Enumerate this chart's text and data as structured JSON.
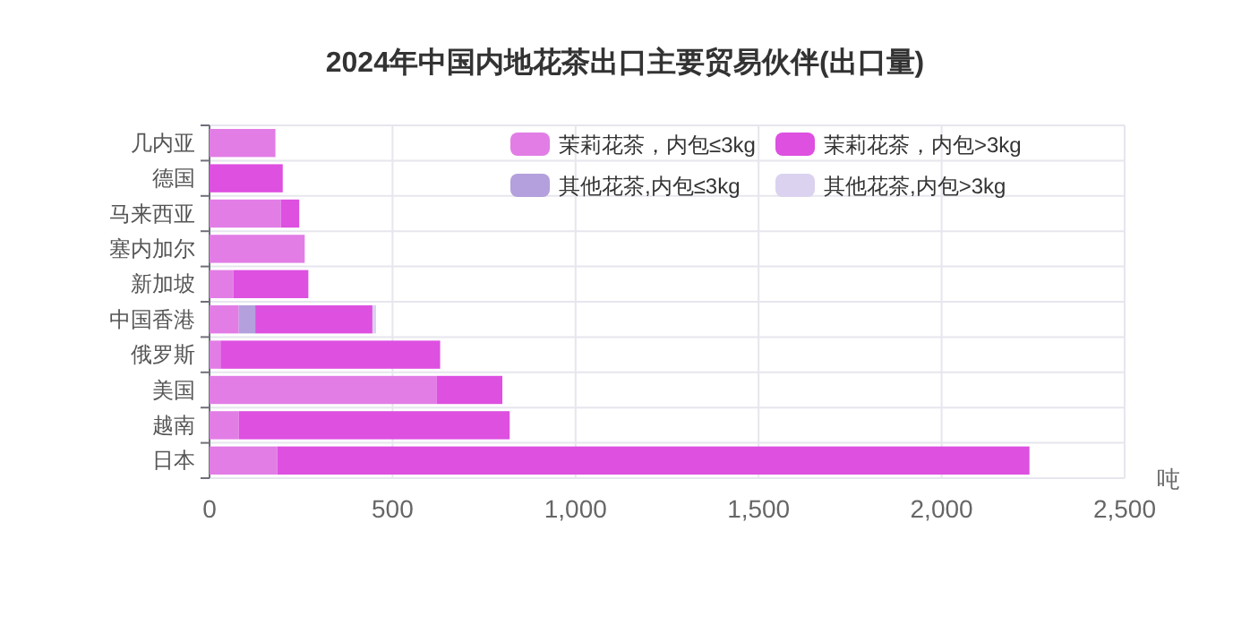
{
  "chart_data": {
    "type": "bar",
    "orientation": "horizontal",
    "stacked": true,
    "title": "2024年中国内地花茶出口主要贸易伙伴(出口量)",
    "xlabel": "吨",
    "categories": [
      "几内亚",
      "德国",
      "马来西亚",
      "塞内加尔",
      "新加坡",
      "中国香港",
      "俄罗斯",
      "美国",
      "越南",
      "日本"
    ],
    "series": [
      {
        "name": "茉莉花茶，内包≤3kg",
        "color": "#e27de6",
        "values": [
          180,
          null,
          195,
          260,
          65,
          80,
          30,
          620,
          80,
          185
        ]
      },
      {
        "name": "其他花茶,内包≤3kg",
        "color": "#b3a0dc",
        "values": [
          null,
          null,
          null,
          null,
          null,
          45,
          null,
          null,
          null,
          null
        ]
      },
      {
        "name": "茉莉花茶，内包>3kg",
        "color": "#dd50e0",
        "values": [
          null,
          200,
          50,
          null,
          205,
          320,
          600,
          180,
          740,
          2055
        ]
      },
      {
        "name": "其他花茶,内包>3kg",
        "color": "#dad2ef",
        "values": [
          null,
          null,
          null,
          null,
          null,
          10,
          null,
          null,
          null,
          null
        ]
      }
    ],
    "xlim": [
      0,
      2500
    ],
    "xticks": [
      0,
      500,
      {
        "value": 1000,
        "label": "1,000"
      },
      {
        "value": 1500,
        "label": "1,500"
      },
      {
        "value": 2000,
        "label": "2,000"
      },
      {
        "value": 2500,
        "label": "2,500"
      }
    ],
    "grid": true,
    "legend": "top right"
  }
}
